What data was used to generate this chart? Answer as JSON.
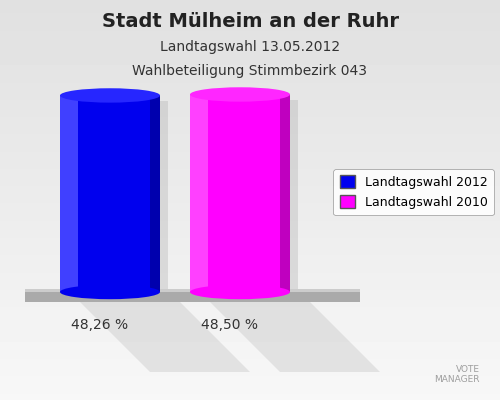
{
  "title": "Stadt Mülheim an der Ruhr",
  "subtitle1": "Landtagswahl 13.05.2012",
  "subtitle2": "Wahlbeteiligung Stimmbezirk 043",
  "values": [
    48.26,
    48.5
  ],
  "bar_colors": [
    "#0000ee",
    "#ff00ff"
  ],
  "bar_labels": [
    "48,26 %",
    "48,50 %"
  ],
  "legend_labels": [
    "Landtagswahl 2012",
    "Landtagswahl 2010"
  ],
  "background_top": "#e8e8e8",
  "background_bottom": "#f8f8f8",
  "title_fontsize": 14,
  "subtitle_fontsize": 10,
  "label_fontsize": 10,
  "legend_fontsize": 9
}
